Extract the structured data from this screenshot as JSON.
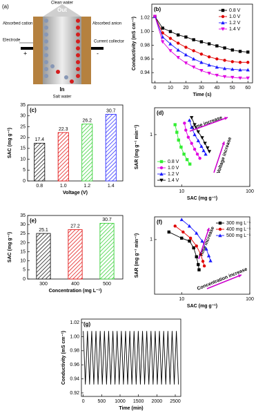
{
  "diagram": {
    "label": "(a)",
    "top": "Clean water",
    "out": "Out",
    "cation": "Absorbed cation",
    "anion": "Absorbed anion",
    "electrode": "Electrode",
    "collector": "Current collector",
    "plus": "+",
    "minus": "-",
    "in": "In",
    "bottom": "Salt water"
  },
  "chart_data": [
    {
      "type": "line",
      "label": "(b)",
      "x_label": "Time (s)",
      "y_label": "Conductivity (mS cm⁻¹)",
      "x": [
        0,
        5,
        10,
        15,
        20,
        25,
        30,
        35,
        40,
        45,
        50,
        55,
        60
      ],
      "series": [
        {
          "name": "0.8 V",
          "color": "#000000",
          "marker": "square",
          "values": [
            1.022,
            1.005,
            1.0,
            0.995,
            0.992,
            0.988,
            0.985,
            0.982,
            0.979,
            0.976,
            0.973,
            0.971,
            0.97
          ]
        },
        {
          "name": "1.0 V",
          "color": "#e00000",
          "marker": "circle",
          "values": [
            1.022,
            0.998,
            0.99,
            0.983,
            0.977,
            0.972,
            0.967,
            0.963,
            0.96,
            0.958,
            0.956,
            0.955,
            0.955
          ]
        },
        {
          "name": "1.2 V",
          "color": "#1a1aff",
          "marker": "triangle",
          "values": [
            1.022,
            0.992,
            0.982,
            0.973,
            0.966,
            0.96,
            0.955,
            0.951,
            0.948,
            0.946,
            0.945,
            0.944,
            0.944
          ]
        },
        {
          "name": "1.4 V",
          "color": "#e000e0",
          "marker": "down-triangle",
          "values": [
            1.022,
            0.985,
            0.972,
            0.962,
            0.954,
            0.948,
            0.943,
            0.939,
            0.936,
            0.934,
            0.933,
            0.932,
            0.932
          ]
        }
      ],
      "xlim": [
        -2,
        63
      ],
      "xticks": [
        0,
        10,
        20,
        30,
        40,
        50,
        60
      ],
      "ylim": [
        0.925,
        1.04
      ],
      "yticks": [
        0.94,
        0.96,
        0.98,
        {
          "value": 1,
          "label": "1.00"
        },
        1.02
      ],
      "legend": "upper right"
    },
    {
      "type": "bar",
      "label": "(c)",
      "x_label": "Voltage (V)",
      "y_label": "SAC (mg g⁻¹)",
      "categories": [
        "0.8",
        "1.0",
        "1.2",
        "1.4"
      ],
      "values": [
        17.4,
        22.3,
        26.2,
        30.7
      ],
      "colors": [
        "#000000",
        "#e00000",
        "#22cc22",
        "#1a1aff"
      ],
      "ylim": [
        0,
        35
      ],
      "yticks": [
        0,
        5,
        10,
        15,
        20,
        25,
        30,
        35
      ]
    },
    {
      "type": "line",
      "label": "(d)",
      "x_label": "SAC (mg g⁻¹)",
      "y_label": "SAR (mg g⁻¹ min⁻¹)",
      "log": true,
      "series": [
        {
          "name": "0.8 V",
          "color": "#33ee33",
          "marker": "square",
          "x": [
            8,
            8.5,
            9,
            9.8,
            10.8,
            12,
            13.2
          ],
          "values": [
            1.5,
            1.1,
            0.8,
            0.6,
            0.45,
            0.36,
            0.3
          ]
        },
        {
          "name": "1.0 V",
          "color": "#e000e0",
          "marker": "circle",
          "x": [
            11,
            11.5,
            12.5,
            14,
            15.5,
            17,
            18.5
          ],
          "values": [
            1.6,
            1.2,
            0.9,
            0.7,
            0.55,
            0.45,
            0.38
          ]
        },
        {
          "name": "1.2 V",
          "color": "#1a1aff",
          "marker": "triangle",
          "x": [
            13,
            14,
            15.5,
            17.5,
            19.5,
            21,
            22.5
          ],
          "values": [
            1.8,
            1.35,
            1.0,
            0.78,
            0.62,
            0.52,
            0.45
          ]
        },
        {
          "name": "1.4 V",
          "color": "#000000",
          "marker": "down-triangle",
          "x": [
            14,
            15.5,
            17.5,
            20,
            22,
            24,
            25.5
          ],
          "values": [
            2.0,
            1.5,
            1.12,
            0.88,
            0.7,
            0.58,
            0.5
          ]
        }
      ],
      "xlim": [
        4,
        100
      ],
      "xticks": [
        10,
        100
      ],
      "ylim": [
        0.12,
        3
      ],
      "yticks": [
        1
      ],
      "legend": "lower left",
      "annotations": [
        "Time increase",
        "Voltage increase"
      ],
      "annotation_color": "#cc00cc"
    },
    {
      "type": "bar",
      "label": "(e)",
      "x_label": "Concentration (mg L⁻¹)",
      "y_label": "SAC (mg g⁻¹)",
      "categories": [
        "300",
        "400",
        "500"
      ],
      "values": [
        25.1,
        27.2,
        30.7
      ],
      "colors": [
        "#000000",
        "#e00000",
        "#22cc22"
      ],
      "ylim": [
        0,
        35
      ],
      "yticks": [
        0,
        5,
        10,
        15,
        20,
        25,
        30,
        35
      ]
    },
    {
      "type": "line",
      "label": "(f)",
      "x_label": "SAC (mg g⁻¹)",
      "y_label": "SAR (mg g⁻¹ min⁻¹)",
      "log": true,
      "series": [
        {
          "name": "300 mg L⁻¹",
          "color": "#000000",
          "marker": "square",
          "x": [
            6.5,
            10,
            13,
            15,
            16.5,
            17.5,
            18
          ],
          "values": [
            1.3,
            1.05,
            0.95,
            0.75,
            0.55,
            0.42,
            0.35
          ]
        },
        {
          "name": "400 mg L⁻¹",
          "color": "#e00000",
          "marker": "circle",
          "x": [
            8,
            10.5,
            13.5,
            16.5,
            19,
            20.5,
            21.5
          ],
          "values": [
            1.6,
            1.3,
            1.05,
            0.8,
            0.6,
            0.47,
            0.4
          ]
        },
        {
          "name": "500 mg L⁻¹",
          "color": "#1a1aff",
          "marker": "triangle",
          "x": [
            10,
            13,
            16.5,
            20,
            23,
            25,
            26.5
          ],
          "values": [
            2.0,
            1.6,
            1.25,
            0.95,
            0.72,
            0.57,
            0.48
          ]
        }
      ],
      "xlim": [
        4,
        100
      ],
      "xticks": [
        10,
        100
      ],
      "ylim": [
        0.15,
        2.2
      ],
      "yticks": [
        1
      ],
      "legend": "upper right",
      "annotations": [
        "Time increase",
        "Concentration increase"
      ],
      "annotation_color": "#cc00cc"
    },
    {
      "type": "line",
      "label": "(g)",
      "x_label": "Time (min)",
      "y_label": "Conductivity (mS cm⁻¹)",
      "x": [
        0,
        57,
        115,
        172,
        230,
        287,
        345,
        402,
        460,
        517,
        575,
        632,
        690,
        747,
        805,
        862,
        920,
        977,
        1035,
        1092,
        1150,
        1207,
        1265,
        1322,
        1380,
        1437,
        1495,
        1552,
        1610,
        1667,
        1725,
        1782,
        1840,
        1897,
        1955,
        2012,
        2070,
        2127,
        2185,
        2242,
        2300,
        2357,
        2415,
        2472,
        2530,
        2587
      ],
      "series": [
        {
          "color": "#000000",
          "values": [
            1.008,
            0.932,
            1.008,
            0.932,
            1.008,
            0.932,
            1.008,
            0.932,
            1.008,
            0.932,
            1.008,
            0.932,
            1.008,
            0.932,
            1.008,
            0.932,
            1.008,
            0.932,
            1.008,
            0.932,
            1.008,
            0.932,
            1.008,
            0.932,
            1.008,
            0.932,
            1.008,
            0.932,
            1.008,
            0.932,
            1.008,
            0.932,
            1.008,
            0.932,
            1.008,
            0.932,
            1.008,
            0.932,
            1.008,
            0.932,
            1.008,
            0.932,
            1.008,
            0.932,
            1.008,
            0.932
          ]
        }
      ],
      "xlim": [
        -50,
        2650
      ],
      "xticks": [
        0,
        500,
        1000,
        1500,
        2000,
        2500
      ],
      "ylim": [
        0.915,
        1.025
      ],
      "yticks": [
        0.92,
        0.94,
        0.96,
        0.98,
        {
          "value": 1,
          "label": "1.00"
        },
        1.02
      ]
    }
  ]
}
